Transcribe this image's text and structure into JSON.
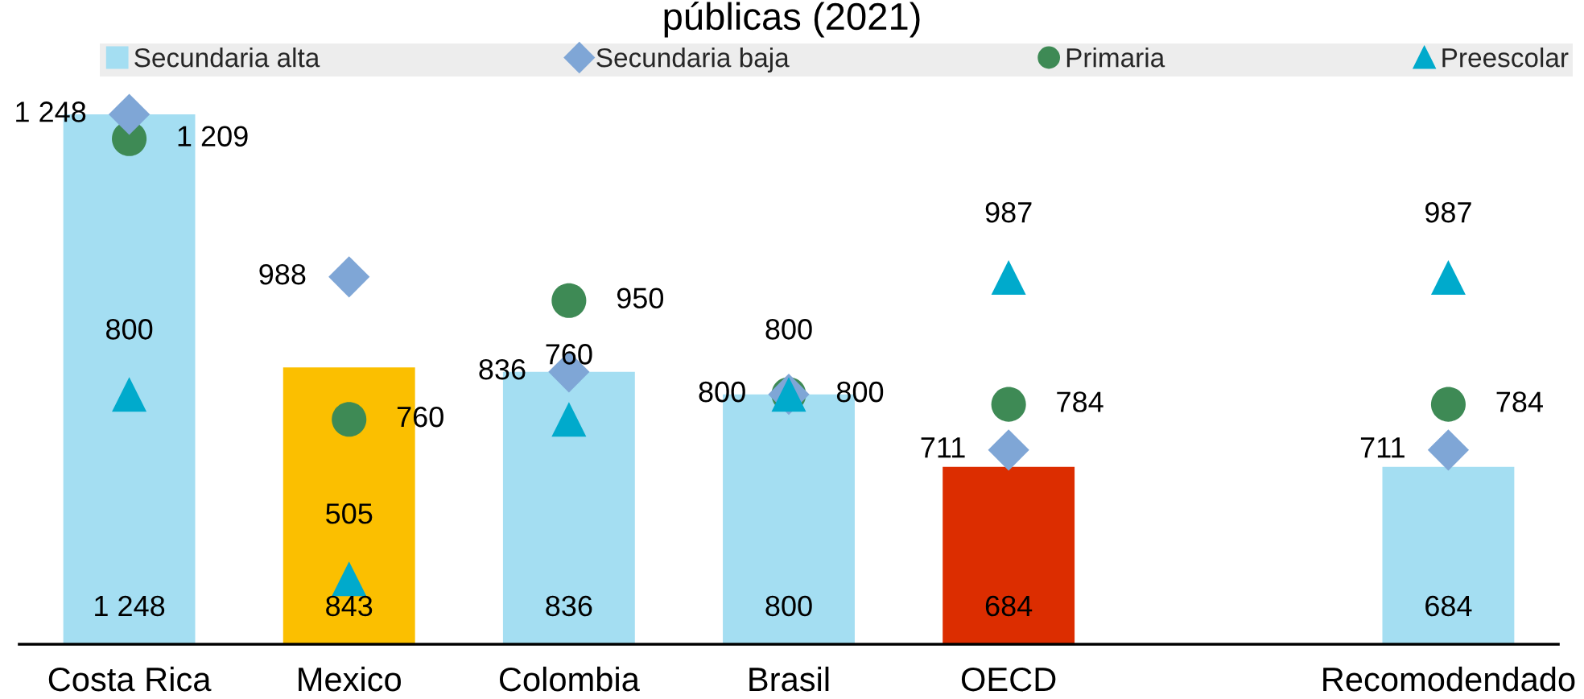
{
  "chart_data": {
    "type": "bar",
    "title": "públicas (2021)",
    "categories": [
      "Costa Rica",
      "Mexico",
      "Colombia",
      "Brasil",
      "OECD",
      null,
      "Recomodendado"
    ],
    "tick_labels": "x",
    "legend": "top",
    "series": [
      {
        "name": "Secundaria alta",
        "color": "#a4def2",
        "colors": [
          "#a4def2",
          "#fbbf00",
          "#a4def2",
          "#a4def2",
          "#dc2d00",
          null,
          "#a4def2"
        ],
        "values": [
          1248,
          843,
          836,
          800,
          684,
          null,
          684
        ],
        "value_labels": [
          "1 248",
          "843",
          "836",
          "800",
          "684",
          null,
          "684"
        ]
      },
      {
        "name": "Secundaria baja",
        "type": "scatter",
        "marker": "diamond",
        "color": "#7fa6d6",
        "values": [
          1248,
          988,
          836,
          800,
          711,
          null,
          711
        ],
        "value_labels": [
          "1 248",
          "988",
          "836",
          "800",
          "711",
          null,
          "711"
        ]
      },
      {
        "name": "Primaria",
        "type": "scatter",
        "marker": "circle",
        "color": "#3e8a55",
        "values": [
          1209,
          760,
          950,
          800,
          784,
          null,
          784
        ],
        "value_labels": [
          "1 209",
          "760",
          "950",
          "800",
          "784",
          null,
          "784"
        ]
      },
      {
        "name": "Preescolar",
        "type": "scatter",
        "marker": "triangle",
        "color": "#00aacc",
        "values": [
          800,
          505,
          760,
          800,
          987,
          null,
          987
        ],
        "value_labels": [
          "800",
          "505",
          "760",
          "800",
          "987",
          null,
          "987"
        ]
      }
    ]
  }
}
